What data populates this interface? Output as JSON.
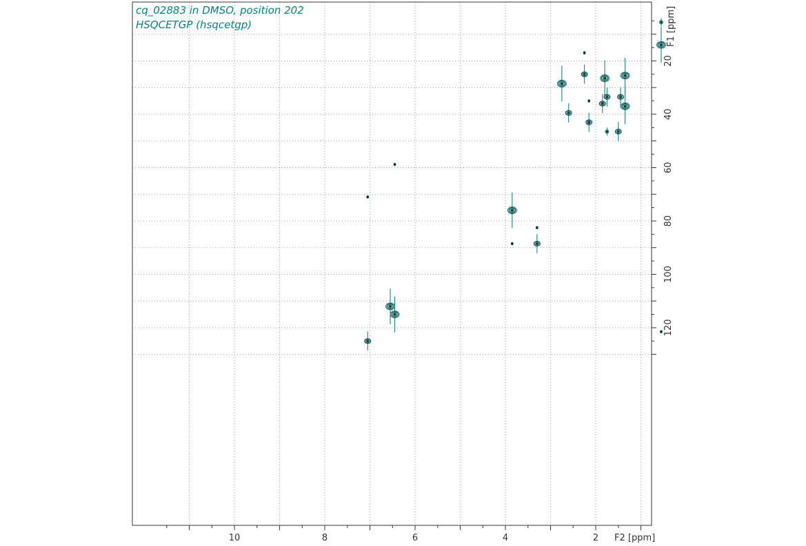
{
  "header": {
    "line1": "cq_02883 in DMSO, position 202",
    "line2": "HSQCETGP (hsqcetgp)"
  },
  "colors": {
    "title": "#00897b",
    "contour_dark": "#0b3b3b",
    "contour_teal": "#0a7a70",
    "grid": "#9a9a9a",
    "frame": "#333333"
  },
  "chart_data": {
    "type": "scatter",
    "title": "",
    "xlabel": "F2 [ppm]",
    "ylabel": "F1 [ppm]",
    "xlim": [
      11.5,
      -0.2
    ],
    "ylim": [
      133,
      2
    ],
    "x_ticks": [
      10,
      8,
      6,
      4,
      2
    ],
    "y_ticks": [
      20,
      40,
      60,
      80,
      100,
      120
    ],
    "x_tick_labels": [
      "10",
      "8",
      "6",
      "4",
      "2"
    ],
    "y_tick_labels": [
      "20",
      "40",
      "60",
      "80",
      "100",
      "120"
    ],
    "grid": true,
    "peaks": [
      {
        "x": 0.55,
        "y": 5.5,
        "size": "small"
      },
      {
        "x": 0.55,
        "y": 14.0,
        "size": "large"
      },
      {
        "x": 2.75,
        "y": 28.5,
        "size": "large"
      },
      {
        "x": 2.25,
        "y": 25.0,
        "size": "medium"
      },
      {
        "x": 2.25,
        "y": 17.0,
        "size": "tiny"
      },
      {
        "x": 1.8,
        "y": 26.5,
        "size": "large"
      },
      {
        "x": 1.75,
        "y": 33.5,
        "size": "medium"
      },
      {
        "x": 1.85,
        "y": 36.0,
        "size": "medium"
      },
      {
        "x": 1.35,
        "y": 25.5,
        "size": "large"
      },
      {
        "x": 1.35,
        "y": 37.0,
        "size": "large"
      },
      {
        "x": 1.45,
        "y": 33.5,
        "size": "medium"
      },
      {
        "x": 2.6,
        "y": 39.5,
        "size": "medium"
      },
      {
        "x": 2.15,
        "y": 43.0,
        "size": "medium"
      },
      {
        "x": 2.15,
        "y": 35.0,
        "size": "tiny"
      },
      {
        "x": 1.75,
        "y": 46.5,
        "size": "small"
      },
      {
        "x": 1.5,
        "y": 46.5,
        "size": "medium"
      },
      {
        "x": 6.45,
        "y": 58.8,
        "size": "tiny"
      },
      {
        "x": 7.05,
        "y": 71.0,
        "size": "tiny"
      },
      {
        "x": 3.85,
        "y": 76.0,
        "size": "large"
      },
      {
        "x": 3.85,
        "y": 88.5,
        "size": "tiny"
      },
      {
        "x": 3.3,
        "y": 82.5,
        "size": "tiny"
      },
      {
        "x": 3.3,
        "y": 88.5,
        "size": "medium"
      },
      {
        "x": 6.55,
        "y": 112.0,
        "size": "large"
      },
      {
        "x": 6.45,
        "y": 115.0,
        "size": "large"
      },
      {
        "x": 7.05,
        "y": 125.0,
        "size": "medium"
      },
      {
        "x": 0.55,
        "y": 121.5,
        "size": "tiny"
      }
    ]
  }
}
